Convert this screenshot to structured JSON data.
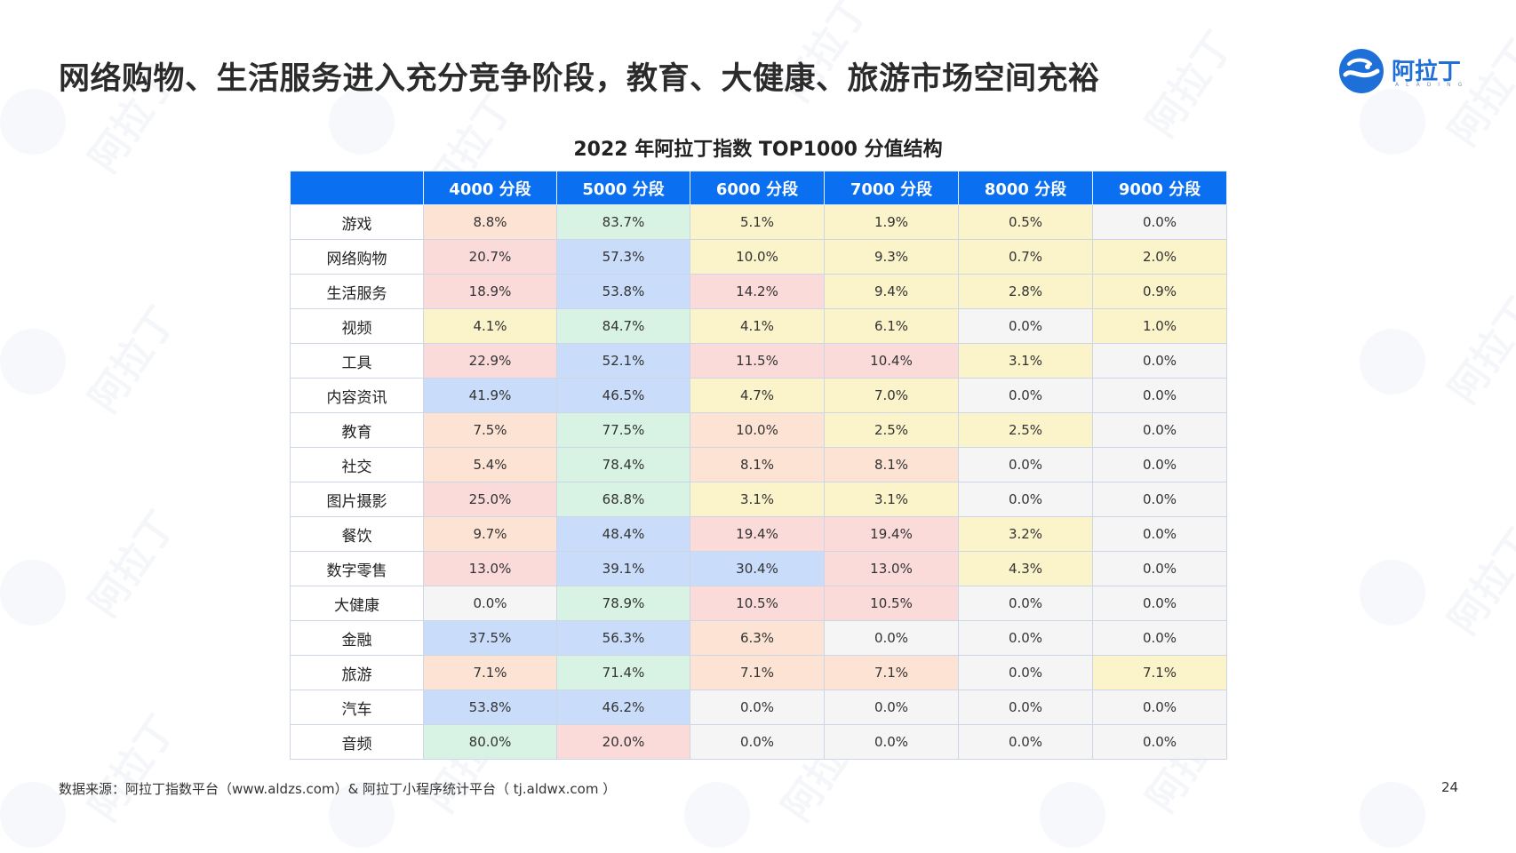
{
  "page": {
    "title": "网络购物、生活服务进入充分竞争阶段，教育、大健康、旅游市场空间充裕",
    "number": "24"
  },
  "logo": {
    "name": "阿拉丁",
    "subtitle": "ALADING",
    "icon": "aladdin-wave-logo-icon",
    "color": "#1f6fd8"
  },
  "watermark": {
    "text": "阿拉丁"
  },
  "table": {
    "title": "2022 年阿拉丁指数 TOP1000 分值结构",
    "header_color": "#0a6ff0",
    "columns": [
      "",
      "4000 分段",
      "5000 分段",
      "6000 分段",
      "7000 分段",
      "8000 分段",
      "9000 分段"
    ],
    "rows": [
      {
        "label": "游戏",
        "values": [
          "8.8%",
          "83.7%",
          "5.1%",
          "1.9%",
          "0.5%",
          "0.0%"
        ],
        "colors": [
          "peach",
          "green",
          "yellow",
          "yellow",
          "yellow",
          "gray"
        ]
      },
      {
        "label": "网络购物",
        "values": [
          "20.7%",
          "57.3%",
          "10.0%",
          "9.3%",
          "0.7%",
          "2.0%"
        ],
        "colors": [
          "pink",
          "blue",
          "yellow",
          "yellow",
          "yellow",
          "yellow"
        ]
      },
      {
        "label": "生活服务",
        "values": [
          "18.9%",
          "53.8%",
          "14.2%",
          "9.4%",
          "2.8%",
          "0.9%"
        ],
        "colors": [
          "pink",
          "blue",
          "pink",
          "yellow",
          "yellow",
          "yellow"
        ]
      },
      {
        "label": "视频",
        "values": [
          "4.1%",
          "84.7%",
          "4.1%",
          "6.1%",
          "0.0%",
          "1.0%"
        ],
        "colors": [
          "yellow",
          "green",
          "yellow",
          "yellow",
          "gray",
          "yellow"
        ]
      },
      {
        "label": "工具",
        "values": [
          "22.9%",
          "52.1%",
          "11.5%",
          "10.4%",
          "3.1%",
          "0.0%"
        ],
        "colors": [
          "pink",
          "blue",
          "pink",
          "pink",
          "yellow",
          "gray"
        ]
      },
      {
        "label": "内容资讯",
        "values": [
          "41.9%",
          "46.5%",
          "4.7%",
          "7.0%",
          "0.0%",
          "0.0%"
        ],
        "colors": [
          "blue",
          "blue",
          "yellow",
          "yellow",
          "gray",
          "gray"
        ]
      },
      {
        "label": "教育",
        "values": [
          "7.5%",
          "77.5%",
          "10.0%",
          "2.5%",
          "2.5%",
          "0.0%"
        ],
        "colors": [
          "peach",
          "green",
          "peach",
          "yellow",
          "yellow",
          "gray"
        ]
      },
      {
        "label": "社交",
        "values": [
          "5.4%",
          "78.4%",
          "8.1%",
          "8.1%",
          "0.0%",
          "0.0%"
        ],
        "colors": [
          "peach",
          "green",
          "peach",
          "peach",
          "gray",
          "gray"
        ]
      },
      {
        "label": "图片摄影",
        "values": [
          "25.0%",
          "68.8%",
          "3.1%",
          "3.1%",
          "0.0%",
          "0.0%"
        ],
        "colors": [
          "pink",
          "green",
          "yellow",
          "yellow",
          "gray",
          "gray"
        ]
      },
      {
        "label": "餐饮",
        "values": [
          "9.7%",
          "48.4%",
          "19.4%",
          "19.4%",
          "3.2%",
          "0.0%"
        ],
        "colors": [
          "peach",
          "blue",
          "pink",
          "pink",
          "yellow",
          "gray"
        ]
      },
      {
        "label": "数字零售",
        "values": [
          "13.0%",
          "39.1%",
          "30.4%",
          "13.0%",
          "4.3%",
          "0.0%"
        ],
        "colors": [
          "pink",
          "blue",
          "blue",
          "pink",
          "yellow",
          "gray"
        ]
      },
      {
        "label": "大健康",
        "values": [
          "0.0%",
          "78.9%",
          "10.5%",
          "10.5%",
          "0.0%",
          "0.0%"
        ],
        "colors": [
          "gray",
          "green",
          "pink",
          "pink",
          "gray",
          "gray"
        ]
      },
      {
        "label": "金融",
        "values": [
          "37.5%",
          "56.3%",
          "6.3%",
          "0.0%",
          "0.0%",
          "0.0%"
        ],
        "colors": [
          "blue",
          "blue",
          "peach",
          "gray",
          "gray",
          "gray"
        ]
      },
      {
        "label": "旅游",
        "values": [
          "7.1%",
          "71.4%",
          "7.1%",
          "7.1%",
          "0.0%",
          "7.1%"
        ],
        "colors": [
          "peach",
          "green",
          "peach",
          "peach",
          "gray",
          "yellow"
        ]
      },
      {
        "label": "汽车",
        "values": [
          "53.8%",
          "46.2%",
          "0.0%",
          "0.0%",
          "0.0%",
          "0.0%"
        ],
        "colors": [
          "blue",
          "blue",
          "gray",
          "gray",
          "gray",
          "gray"
        ]
      },
      {
        "label": "音频",
        "values": [
          "80.0%",
          "20.0%",
          "0.0%",
          "0.0%",
          "0.0%",
          "0.0%"
        ],
        "colors": [
          "green",
          "pink",
          "gray",
          "gray",
          "gray",
          "gray"
        ]
      }
    ]
  },
  "footer": {
    "source": "数据来源：阿拉丁指数平台（www.aldzs.com）& 阿拉丁小程序统计平台（ tj.aldwx.com ）"
  }
}
